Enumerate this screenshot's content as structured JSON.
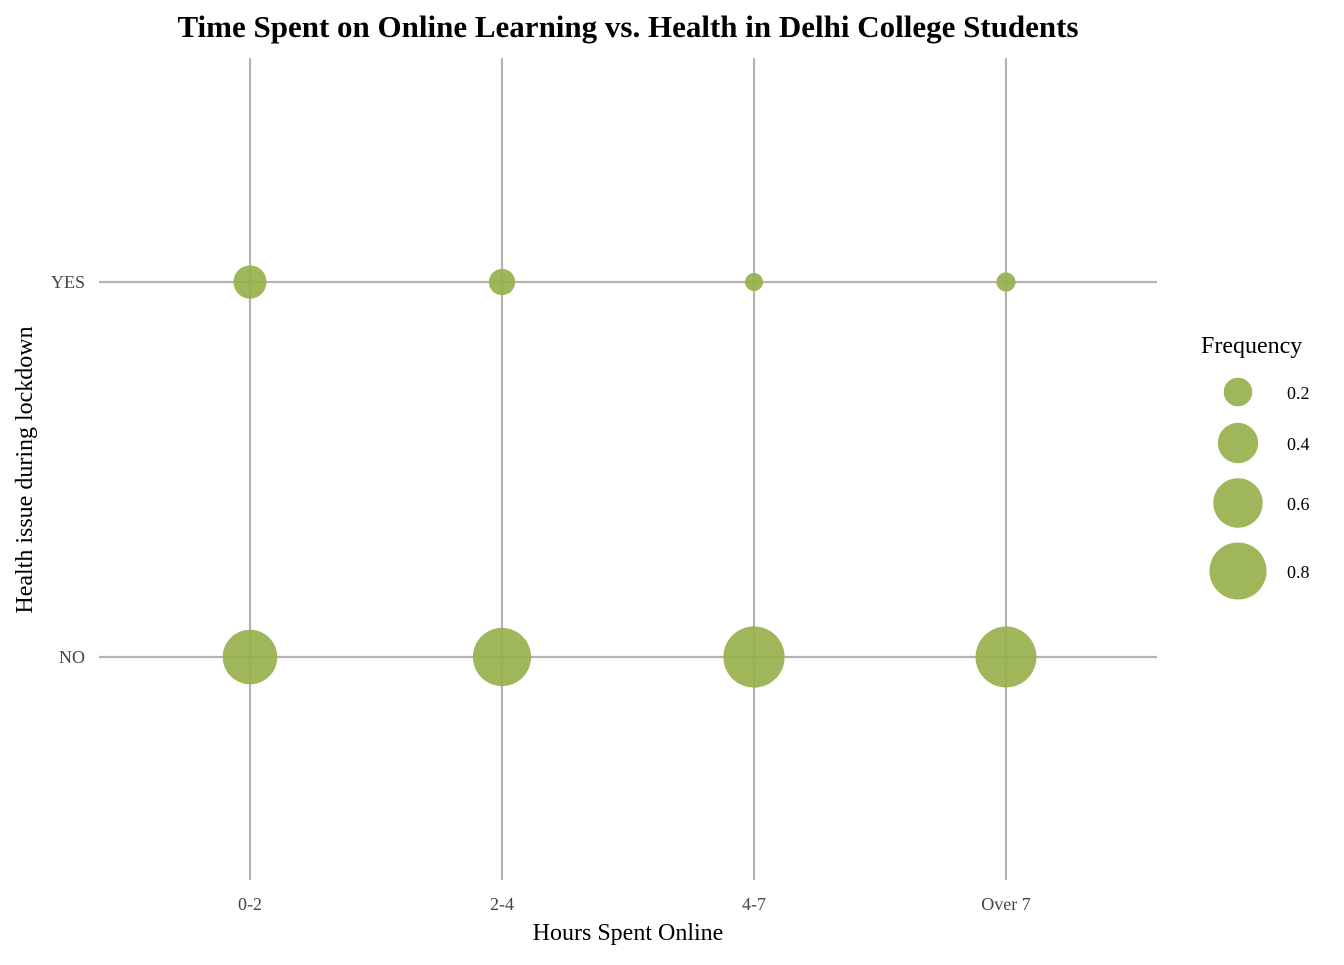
{
  "chart_data": {
    "type": "scatter",
    "subtype": "bubble",
    "title": "Time Spent on Online Learning vs. Health in Delhi College Students",
    "xlabel": "Hours Spent Online",
    "ylabel": "Health issue during lockdown",
    "categories": [
      "0-2",
      "2-4",
      "4-7",
      "Over 7"
    ],
    "y_categories": [
      "NO",
      "YES"
    ],
    "points": [
      {
        "x": "0-2",
        "y": "YES",
        "frequency": 0.27
      },
      {
        "x": "0-2",
        "y": "NO",
        "frequency": 0.73
      },
      {
        "x": "2-4",
        "y": "YES",
        "frequency": 0.17
      },
      {
        "x": "2-4",
        "y": "NO",
        "frequency": 0.83
      },
      {
        "x": "4-7",
        "y": "YES",
        "frequency": 0.08
      },
      {
        "x": "4-7",
        "y": "NO",
        "frequency": 0.92
      },
      {
        "x": "Over 7",
        "y": "YES",
        "frequency": 0.09
      },
      {
        "x": "Over 7",
        "y": "NO",
        "frequency": 0.91
      }
    ],
    "legend": {
      "title": "Frequency",
      "position": "right",
      "breaks": [
        0.2,
        0.4,
        0.6,
        0.8
      ],
      "labels": [
        "0.2",
        "0.4",
        "0.6",
        "0.8"
      ]
    },
    "grid": true,
    "colors": {
      "point": "#98b04d",
      "grid": "#b3b3b3",
      "tick": "#444444"
    }
  }
}
